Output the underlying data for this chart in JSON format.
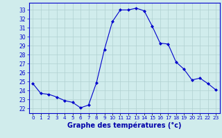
{
  "hours": [
    0,
    1,
    2,
    3,
    4,
    5,
    6,
    7,
    8,
    9,
    10,
    11,
    12,
    13,
    14,
    15,
    16,
    17,
    18,
    19,
    20,
    21,
    22,
    23
  ],
  "temps": [
    24.8,
    23.7,
    23.6,
    23.3,
    22.9,
    22.7,
    22.1,
    22.4,
    24.9,
    28.6,
    31.7,
    33.0,
    33.0,
    33.2,
    32.9,
    31.2,
    29.3,
    29.2,
    27.2,
    26.4,
    25.2,
    25.4,
    24.8,
    24.1
  ],
  "line_color": "#0000cc",
  "marker": "D",
  "marker_size": 2.0,
  "bg_color": "#d0ecec",
  "grid_color": "#b0d0d0",
  "xlabel": "Graphe des températures (°c)",
  "xlabel_color": "#0000aa",
  "ylabel_ticks": [
    22,
    23,
    24,
    25,
    26,
    27,
    28,
    29,
    30,
    31,
    32,
    33
  ],
  "ylim": [
    21.5,
    33.8
  ],
  "xlim": [
    -0.5,
    23.5
  ],
  "tick_color": "#0000cc",
  "spine_color": "#0000cc",
  "figsize": [
    3.2,
    2.0
  ],
  "dpi": 100
}
